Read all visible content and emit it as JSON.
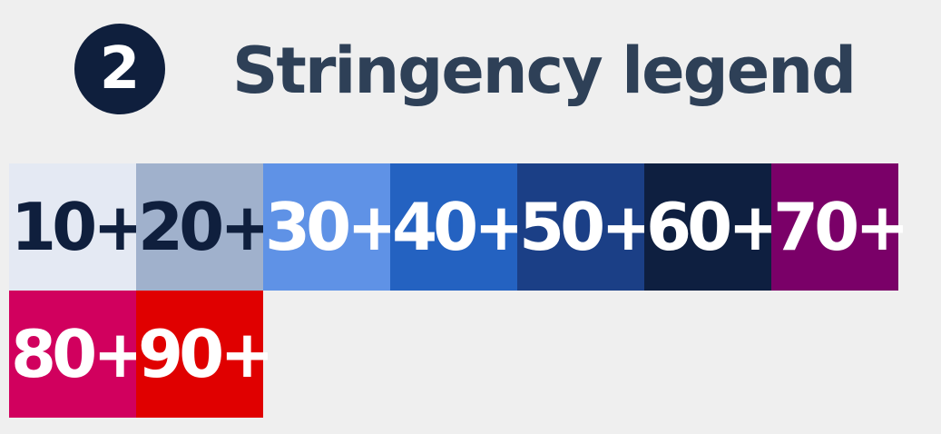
{
  "header": {
    "step_number": "2",
    "title": "Stringency legend"
  },
  "legend": {
    "items": [
      {
        "label": "10+",
        "background": "#e4e9f3",
        "text_color": "#0f1f3d"
      },
      {
        "label": "20+",
        "background": "#a0b1cc",
        "text_color": "#0f1f3d"
      },
      {
        "label": "30+",
        "background": "#5f92e6",
        "text_color": "#ffffff"
      },
      {
        "label": "40+",
        "background": "#2462c1",
        "text_color": "#ffffff"
      },
      {
        "label": "50+",
        "background": "#1b3f86",
        "text_color": "#ffffff"
      },
      {
        "label": "60+",
        "background": "#0e1f40",
        "text_color": "#ffffff"
      },
      {
        "label": "70+",
        "background": "#7a0068",
        "text_color": "#ffffff"
      },
      {
        "label": "80+",
        "background": "#d1005e",
        "text_color": "#ffffff"
      },
      {
        "label": "90+",
        "background": "#e00000",
        "text_color": "#ffffff"
      }
    ]
  }
}
